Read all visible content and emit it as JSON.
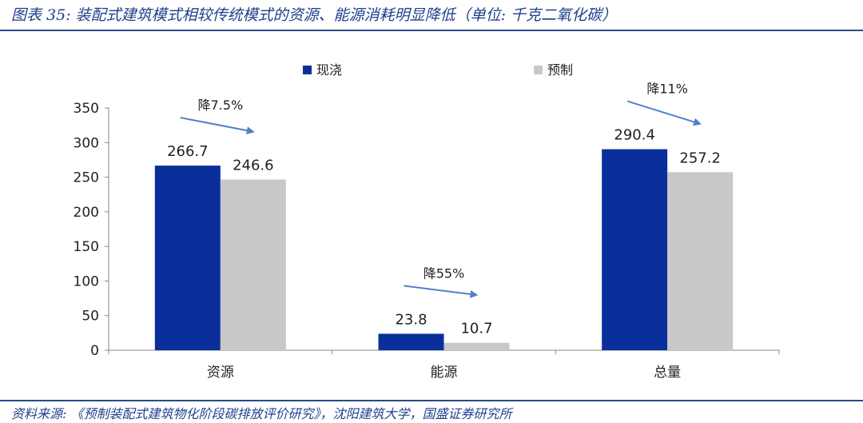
{
  "header": {
    "title": "图表 35:  装配式建筑模式相较传统模式的资源、能源消耗明显降低（单位:  千克二氧化碳）"
  },
  "footer": {
    "source": "资料来源:  《预制装配式建筑物化阶段碳排放评价研究》，沈阳建筑大学，国盛证券研究所"
  },
  "chart_data": {
    "type": "bar",
    "categories": [
      "资源",
      "能源",
      "总量"
    ],
    "series": [
      {
        "name": "现浇",
        "values": [
          266.7,
          23.8,
          290.4
        ],
        "color": "#0a2f9b"
      },
      {
        "name": "预制",
        "values": [
          246.6,
          10.7,
          257.2
        ],
        "color": "#c8c8c8"
      }
    ],
    "data_labels": [
      [
        "266.7",
        "23.8",
        "290.4"
      ],
      [
        "246.6",
        "10.7",
        "257.2"
      ]
    ],
    "annotations": [
      "降7.5%",
      "降55%",
      "降11%"
    ],
    "annotation_color": "#4f81c7",
    "y_ticks": [
      "0",
      "50",
      "100",
      "150",
      "200",
      "250",
      "300",
      "350"
    ],
    "ylim": [
      0,
      350
    ],
    "xlabel": "",
    "ylabel": "",
    "grid": false,
    "legend_position": "top-center"
  }
}
